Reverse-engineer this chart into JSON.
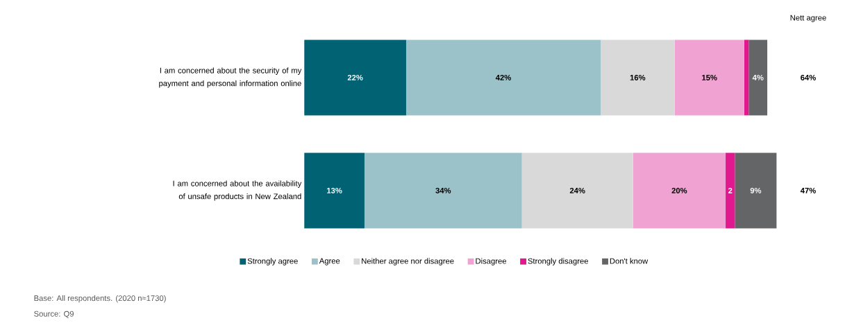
{
  "chart_data": {
    "type": "bar",
    "orientation": "horizontal",
    "stacked": true,
    "legend": "bottom",
    "categories": [
      "I am concerned about the security of my payment and personal information online",
      "I am concerned about the availability of unsafe products in New Zealand"
    ],
    "series": [
      {
        "name": "Strongly agree",
        "color": "#006272",
        "values": [
          22,
          13
        ],
        "value_labels": [
          "22%",
          "13%"
        ]
      },
      {
        "name": "Agree",
        "color": "#9cc2c9",
        "values": [
          42,
          34
        ],
        "value_labels": [
          "42%",
          "34%"
        ]
      },
      {
        "name": "Neither agree nor disagree",
        "color": "#d9d9d9",
        "values": [
          16,
          24
        ],
        "value_labels": [
          "16%",
          "24%"
        ]
      },
      {
        "name": "Disagree",
        "color": "#f0a3d3",
        "values": [
          15,
          20
        ],
        "value_labels": [
          "15%",
          "20%"
        ]
      },
      {
        "name": "Strongly disagree",
        "color": "#e0198f",
        "values": [
          1,
          2
        ],
        "value_labels": [
          null,
          "2"
        ]
      },
      {
        "name": "Don't know",
        "color": "#646567",
        "values": [
          4,
          9
        ],
        "value_labels": [
          "4%",
          "9%"
        ]
      }
    ],
    "annotations": [
      "Nett agree",
      "64%",
      "47%",
      "Base: All respondents. (2020 n≈1730)",
      "Source: Q9"
    ]
  }
}
